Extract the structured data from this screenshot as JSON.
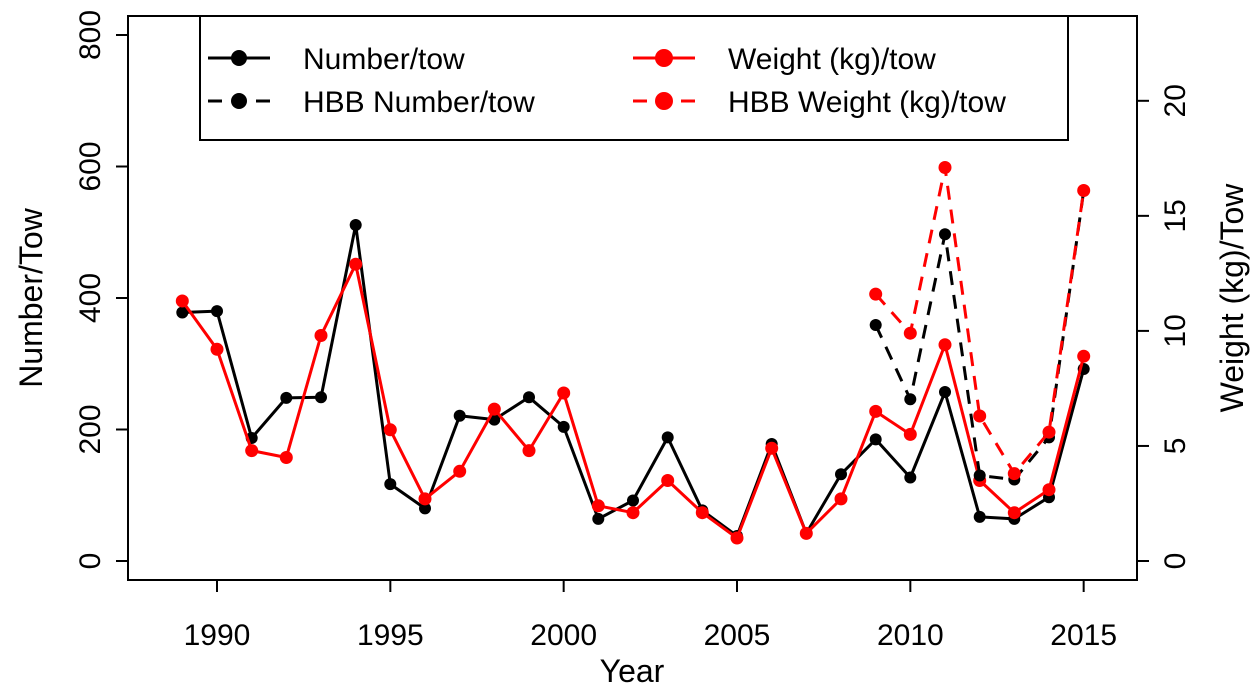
{
  "chart_data": {
    "type": "line",
    "xlabel": "Year",
    "ylabel_left": "Number/Tow",
    "ylabel_right": "Weight (kg)/Tow",
    "xlim": [
      1988.5,
      2015.5
    ],
    "ylim_left": [
      0,
      800
    ],
    "ylim_right": [
      0,
      22.86
    ],
    "x_ticks": [
      1990,
      1995,
      2000,
      2005,
      2010,
      2015
    ],
    "y_left_ticks": [
      0,
      200,
      400,
      600,
      800
    ],
    "y_right_ticks": [
      0,
      5,
      10,
      15,
      20
    ],
    "grid": false,
    "legend_position": "top",
    "legend": {
      "items": [
        {
          "label": "Number/tow",
          "color": "#000000",
          "dashed": false
        },
        {
          "label": "Weight (kg)/tow",
          "color": "#ff0000",
          "dashed": false
        },
        {
          "label": "HBB Number/tow",
          "color": "#000000",
          "dashed": true
        },
        {
          "label": "HBB Weight (kg)/tow",
          "color": "#ff0000",
          "dashed": true
        }
      ]
    },
    "series": [
      {
        "name": "Number/tow",
        "axis": "left",
        "color": "#000000",
        "dashed": false,
        "x": [
          1989,
          1990,
          1991,
          1992,
          1993,
          1994,
          1995,
          1996,
          1997,
          1998,
          1999,
          2000,
          2001,
          2002,
          2003,
          2004,
          2005,
          2006,
          2007,
          2008,
          2009,
          2010,
          2011,
          2012,
          2013,
          2014,
          2015
        ],
        "y": [
          378,
          380,
          187,
          248,
          249,
          511,
          117,
          80,
          221,
          215,
          249,
          204,
          64,
          92,
          188,
          77,
          38,
          178,
          42,
          132,
          185,
          127,
          257,
          67,
          64,
          97,
          292
        ]
      },
      {
        "name": "Weight (kg)/tow",
        "axis": "right",
        "color": "#ff0000",
        "dashed": false,
        "x": [
          1989,
          1990,
          1991,
          1992,
          1993,
          1994,
          1995,
          1996,
          1997,
          1998,
          1999,
          2000,
          2001,
          2002,
          2003,
          2004,
          2005,
          2006,
          2007,
          2008,
          2009,
          2010,
          2011,
          2012,
          2013,
          2014,
          2015
        ],
        "y": [
          11.3,
          9.2,
          4.8,
          4.5,
          9.8,
          12.9,
          5.7,
          2.7,
          3.9,
          6.6,
          4.8,
          7.3,
          2.4,
          2.1,
          3.5,
          2.1,
          1.0,
          4.9,
          1.2,
          2.7,
          6.5,
          5.5,
          9.4,
          3.5,
          2.1,
          3.1,
          8.9
        ]
      },
      {
        "name": "HBB Number/tow",
        "axis": "left",
        "color": "#000000",
        "dashed": true,
        "x": [
          2009,
          2010,
          2011,
          2012,
          2013,
          2014,
          2015
        ],
        "y": [
          359,
          246,
          497,
          130,
          124,
          188,
          563
        ]
      },
      {
        "name": "HBB Weight (kg)/tow",
        "axis": "right",
        "color": "#ff0000",
        "dashed": true,
        "x": [
          2009,
          2010,
          2011,
          2012,
          2013,
          2014,
          2015
        ],
        "y": [
          11.6,
          9.9,
          17.1,
          6.3,
          3.8,
          5.6,
          16.1
        ]
      }
    ]
  }
}
